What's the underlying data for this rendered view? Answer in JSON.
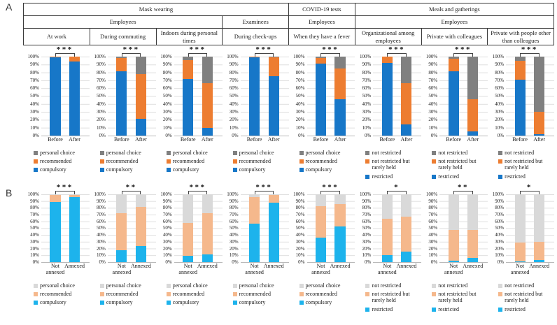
{
  "figure": {
    "panel_a_label": "A",
    "panel_b_label": "B"
  },
  "header": {
    "row1": [
      "Mask wearing",
      "COVID-19 tests",
      "Meals and gatherings"
    ],
    "row2": [
      "Employees",
      "Examinees",
      "Employees",
      "Employees"
    ],
    "row3": [
      "At work",
      "During commuting",
      "Indoors during personal times",
      "During check-ups",
      "When they have a fever",
      "Organizational among employees",
      "Private with colleagues",
      "Private with people other than colleagues"
    ]
  },
  "chart_data": {
    "type": "bar",
    "subtype": "100-percent-stacked-column",
    "ylim": [
      0,
      100
    ],
    "gridlines": true,
    "yticks": [
      "100%",
      "90%",
      "80%",
      "70%",
      "60%",
      "50%",
      "40%",
      "30%",
      "20%",
      "10%",
      "0%"
    ],
    "panels": [
      {
        "panel": "A",
        "categories": [
          "Before",
          "After"
        ],
        "colors_bottom_to_top": [
          "#1777c8",
          "#ed7d31",
          "#808080"
        ],
        "charts": [
          {
            "title": "At work",
            "significance": "***",
            "legend": [
              "personal choice",
              "recommended",
              "compulsory"
            ],
            "series": [
              {
                "name": "compulsory",
                "values": [
                  99,
                  94
                ]
              },
              {
                "name": "recommended",
                "values": [
                  1,
                  6
                ]
              },
              {
                "name": "personal choice",
                "values": [
                  0,
                  0
                ]
              }
            ]
          },
          {
            "title": "During commuting",
            "significance": "***",
            "legend": [
              "personal choice",
              "recommended",
              "compulsory"
            ],
            "series": [
              {
                "name": "compulsory",
                "values": [
                  81,
                  21
                ]
              },
              {
                "name": "recommended",
                "values": [
                  17,
                  57
                ]
              },
              {
                "name": "personal choice",
                "values": [
                  2,
                  22
                ]
              }
            ]
          },
          {
            "title": "Indoors during personal times",
            "significance": "***",
            "legend": [
              "personal choice",
              "recommended",
              "compulsory"
            ],
            "series": [
              {
                "name": "compulsory",
                "values": [
                  72,
                  10
                ]
              },
              {
                "name": "recommended",
                "values": [
                  24,
                  56
                ]
              },
              {
                "name": "personal choice",
                "values": [
                  4,
                  34
                ]
              }
            ]
          },
          {
            "title": "During check-ups",
            "significance": "***",
            "legend": [
              "personal choice",
              "recommended",
              "compulsory"
            ],
            "series": [
              {
                "name": "compulsory",
                "values": [
                  99,
                  75
                ]
              },
              {
                "name": "recommended",
                "values": [
                  1,
                  24
                ]
              },
              {
                "name": "personal choice",
                "values": [
                  0,
                  1
                ]
              }
            ]
          },
          {
            "title": "When they have a fever",
            "significance": "***",
            "legend": [
              "personal choice",
              "recommended",
              "compulsory"
            ],
            "series": [
              {
                "name": "compulsory",
                "values": [
                  91,
                  46
                ]
              },
              {
                "name": "recommended",
                "values": [
                  7,
                  39
                ]
              },
              {
                "name": "personal choice",
                "values": [
                  2,
                  15
                ]
              }
            ]
          },
          {
            "title": "Organizational among employees",
            "significance": "***",
            "legend": [
              "not restricted",
              "not restricted but rarely held",
              "restricted"
            ],
            "series": [
              {
                "name": "restricted",
                "values": [
                  92,
                  14
                ]
              },
              {
                "name": "not restricted but rarely held",
                "values": [
                  8,
                  52
                ]
              },
              {
                "name": "not restricted",
                "values": [
                  0,
                  34
                ]
              }
            ]
          },
          {
            "title": "Private with colleagues",
            "significance": "***",
            "legend": [
              "not restricted",
              "not restricted but rarely held",
              "restricted"
            ],
            "series": [
              {
                "name": "restricted",
                "values": [
                  81,
                  5
                ]
              },
              {
                "name": "not restricted but rarely held",
                "values": [
                  16,
                  41
                ]
              },
              {
                "name": "not restricted",
                "values": [
                  3,
                  54
                ]
              }
            ]
          },
          {
            "title": "Private with people other than colleagues",
            "significance": "***",
            "legend": [
              "not restricted",
              "not restricted but rarely held",
              "restricted"
            ],
            "series": [
              {
                "name": "restricted",
                "values": [
                  71,
                  2
                ]
              },
              {
                "name": "not restricted but rarely held",
                "values": [
                  24,
                  28
                ]
              },
              {
                "name": "not restricted",
                "values": [
                  5,
                  70
                ]
              }
            ]
          }
        ]
      },
      {
        "panel": "B",
        "categories": [
          "Not annexed",
          "Annexed"
        ],
        "colors_bottom_to_top": [
          "#1db3ec",
          "#f5b88c",
          "#d9d9d9"
        ],
        "charts": [
          {
            "title": "At work",
            "significance": "***",
            "legend": [
              "personal choice",
              "recommended",
              "compulsory"
            ],
            "series": [
              {
                "name": "compulsory",
                "values": [
                  89,
                  96
                ]
              },
              {
                "name": "recommended",
                "values": [
                  10,
                  3
                ]
              },
              {
                "name": "personal choice",
                "values": [
                  1,
                  1
                ]
              }
            ]
          },
          {
            "title": "During commuting",
            "significance": "**",
            "legend": [
              "personal choice",
              "recommended",
              "compulsory"
            ],
            "series": [
              {
                "name": "compulsory",
                "values": [
                  18,
                  24
                ]
              },
              {
                "name": "recommended",
                "values": [
                  54,
                  57
                ]
              },
              {
                "name": "personal choice",
                "values": [
                  28,
                  19
                ]
              }
            ]
          },
          {
            "title": "Indoors during personal times",
            "significance": "***",
            "legend": [
              "personal choice",
              "recommended",
              "compulsory"
            ],
            "series": [
              {
                "name": "compulsory",
                "values": [
                  9,
                  11
                ]
              },
              {
                "name": "recommended",
                "values": [
                  49,
                  61
                ]
              },
              {
                "name": "personal choice",
                "values": [
                  42,
                  28
                ]
              }
            ]
          },
          {
            "title": "During check-ups",
            "significance": "***",
            "legend": [
              "personal choice",
              "recommended",
              "compulsory"
            ],
            "series": [
              {
                "name": "compulsory",
                "values": [
                  57,
                  88
                ]
              },
              {
                "name": "recommended",
                "values": [
                  39,
                  11
                ]
              },
              {
                "name": "personal choice",
                "values": [
                  4,
                  1
                ]
              }
            ]
          },
          {
            "title": "When they have a fever",
            "significance": "***",
            "legend": [
              "personal choice",
              "recommended",
              "compulsory"
            ],
            "series": [
              {
                "name": "compulsory",
                "values": [
                  36,
                  53
                ]
              },
              {
                "name": "recommended",
                "values": [
                  46,
                  33
                ]
              },
              {
                "name": "personal choice",
                "values": [
                  18,
                  14
                ]
              }
            ]
          },
          {
            "title": "Organizational among employees",
            "significance": "*",
            "legend": [
              "not restricted",
              "not restricted but rarely held",
              "restricted"
            ],
            "series": [
              {
                "name": "restricted",
                "values": [
                  10,
                  15
                ]
              },
              {
                "name": "not restricted but rarely held",
                "values": [
                  54,
                  52
                ]
              },
              {
                "name": "not restricted",
                "values": [
                  36,
                  33
                ]
              }
            ]
          },
          {
            "title": "Private with colleagues",
            "significance": "**",
            "legend": [
              "not restricted",
              "not restricted but rarely held",
              "restricted"
            ],
            "series": [
              {
                "name": "restricted",
                "values": [
                  2,
                  6
                ]
              },
              {
                "name": "not restricted but rarely held",
                "values": [
                  45,
                  41
                ]
              },
              {
                "name": "not restricted",
                "values": [
                  53,
                  53
                ]
              }
            ]
          },
          {
            "title": "Private with people other than colleagues",
            "significance": "*",
            "legend": [
              "not restricted",
              "not restricted but rarely held",
              "restricted"
            ],
            "series": [
              {
                "name": "restricted",
                "values": [
                  1,
                  3
                ]
              },
              {
                "name": "not restricted but rarely held",
                "values": [
                  28,
                  27
                ]
              },
              {
                "name": "not restricted",
                "values": [
                  71,
                  70
                ]
              }
            ]
          }
        ]
      }
    ]
  }
}
